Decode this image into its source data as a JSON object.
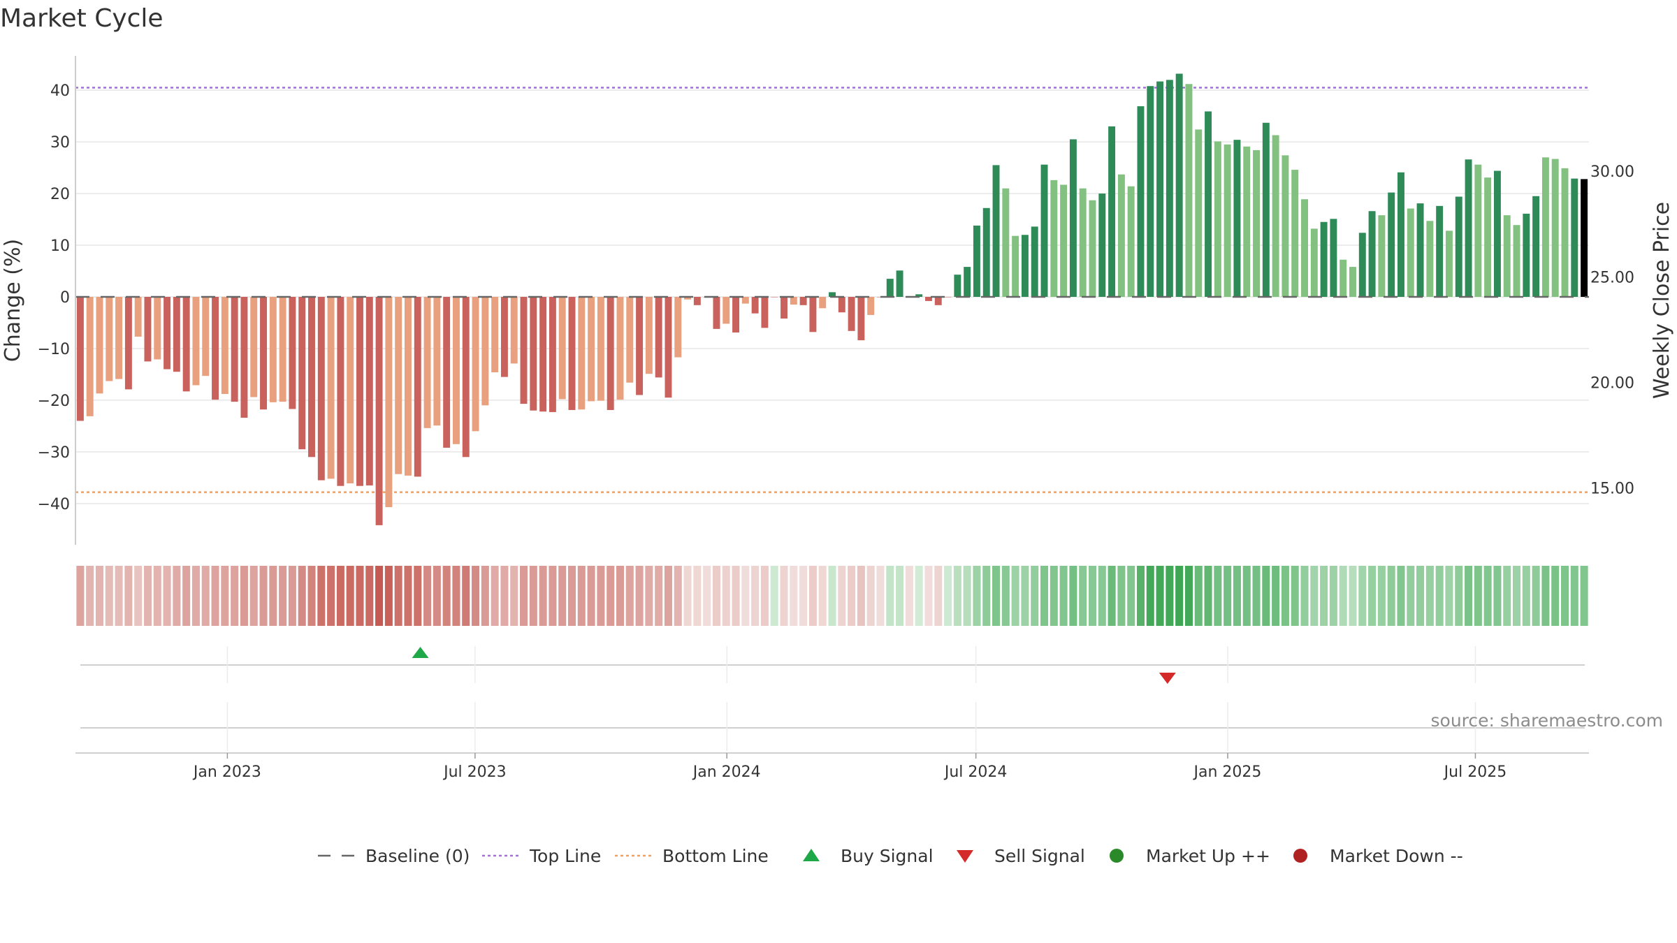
{
  "chart_data": {
    "type": "bar",
    "title": "Market Cycle",
    "ylabel": "Change (%)",
    "y2label": "Weekly Close Price",
    "ylim": [
      -48,
      48
    ],
    "y_ticks": [
      40,
      30,
      20,
      10,
      0,
      -10,
      -20,
      -30,
      -40
    ],
    "y_tick_labels": [
      "40",
      "30",
      "20",
      "10",
      "0",
      "−10",
      "−20",
      "−30",
      "−40"
    ],
    "y2_ticks": [
      30,
      25,
      20,
      15
    ],
    "y2_tick_labels": [
      "30.00",
      "25.00",
      "20.00",
      "15.00"
    ],
    "y2lim": [
      12.3,
      35.8
    ],
    "x_start": "2022-09-12",
    "x_end": "2025-09-22",
    "x_ticks": [
      "2023-01-01",
      "2023-07-01",
      "2024-01-01",
      "2024-07-01",
      "2025-01-01",
      "2025-07-01"
    ],
    "x_tick_labels": [
      "Jan 2023",
      "Jul 2023",
      "Jan 2024",
      "Jul 2024",
      "Jan 2025",
      "Jul 2025"
    ],
    "top_line": 40.5,
    "bottom_line": -37.8,
    "values": [
      -24.0,
      -23.1,
      -18.7,
      -16.3,
      -15.9,
      -17.9,
      -7.7,
      -12.5,
      -12.1,
      -14.0,
      -14.5,
      -18.3,
      -17.1,
      -15.3,
      -19.9,
      -18.8,
      -20.3,
      -23.4,
      -19.4,
      -21.8,
      -20.4,
      -20.3,
      -21.7,
      -29.5,
      -31.0,
      -35.5,
      -35.2,
      -36.6,
      -36.1,
      -36.6,
      -36.5,
      -44.2,
      -40.7,
      -34.3,
      -34.6,
      -34.8,
      -25.4,
      -24.9,
      -29.2,
      -28.5,
      -31.0,
      -26.0,
      -21.0,
      -14.6,
      -15.5,
      -12.9,
      -20.7,
      -22.0,
      -22.2,
      -22.3,
      -19.8,
      -21.9,
      -21.8,
      -20.2,
      -20.1,
      -21.9,
      -19.9,
      -16.6,
      -19.0,
      -14.9,
      -15.6,
      -19.5,
      -11.7,
      -0.5,
      -1.6,
      0.0,
      -6.2,
      -5.2,
      -6.9,
      -1.3,
      -3.2,
      -6.0,
      0.0,
      -4.2,
      -1.5,
      -1.6,
      -6.8,
      -2.2,
      0.9,
      -3.0,
      -6.6,
      -8.4,
      -3.5,
      0.0,
      3.5,
      5.1,
      0.0,
      0.5,
      -0.8,
      -1.6,
      0.0,
      4.3,
      5.8,
      13.8,
      17.2,
      25.5,
      21.0,
      11.8,
      12.0,
      13.6,
      25.6,
      22.6,
      21.7,
      30.5,
      21.0,
      18.7,
      20.0,
      33.0,
      23.7,
      21.4,
      36.9,
      40.8,
      41.7,
      42.0,
      43.2,
      41.2,
      32.4,
      35.9,
      30.1,
      29.5,
      30.4,
      29.1,
      28.4,
      33.7,
      31.3,
      27.4,
      24.6,
      18.9,
      13.2,
      14.5,
      15.1,
      7.2,
      5.8,
      12.4,
      16.6,
      15.8,
      20.2,
      24.1,
      17.1,
      18.1,
      14.7,
      17.6,
      12.8,
      19.4,
      26.6,
      25.6,
      23.1,
      24.4,
      15.8,
      13.9,
      16.1,
      19.5,
      27.0,
      26.7,
      24.9,
      22.9,
      22.8
    ],
    "bar_colors": [
      "#c9625c",
      "#e9a07e",
      "#e9a07e",
      "#e9a07e",
      "#e9a07e",
      "#c9625c",
      "#e9a07e",
      "#c9625c",
      "#e9a07e",
      "#c9625c",
      "#c9625c",
      "#c9625c",
      "#e9a07e",
      "#e9a07e",
      "#c9625c",
      "#e9a07e",
      "#c9625c",
      "#c9625c",
      "#e9a07e",
      "#c9625c",
      "#e9a07e",
      "#e9a07e",
      "#c9625c",
      "#c9625c",
      "#c9625c",
      "#c9625c",
      "#e9a07e",
      "#c9625c",
      "#e9a07e",
      "#c9625c",
      "#c9625c",
      "#c9625c",
      "#e9a07e",
      "#e9a07e",
      "#e9a07e",
      "#c9625c",
      "#e9a07e",
      "#e9a07e",
      "#c9625c",
      "#e9a07e",
      "#c9625c",
      "#e9a07e",
      "#e9a07e",
      "#e9a07e",
      "#c9625c",
      "#e9a07e",
      "#c9625c",
      "#c9625c",
      "#c9625c",
      "#c9625c",
      "#e9a07e",
      "#c9625c",
      "#e9a07e",
      "#e9a07e",
      "#e9a07e",
      "#c9625c",
      "#e9a07e",
      "#e9a07e",
      "#c9625c",
      "#e9a07e",
      "#c9625c",
      "#c9625c",
      "#e9a07e",
      "#e9a07e",
      "#c9625c",
      "#c9625c",
      "#c9625c",
      "#e9a07e",
      "#c9625c",
      "#e9a07e",
      "#c9625c",
      "#c9625c",
      "#c9625c",
      "#c9625c",
      "#e9a07e",
      "#c9625c",
      "#c9625c",
      "#e9a07e",
      "#2e8b57",
      "#c9625c",
      "#c9625c",
      "#c9625c",
      "#e9a07e",
      "#c9625c",
      "#2e8b57",
      "#2e8b57",
      "#c9625c",
      "#2e8b57",
      "#c9625c",
      "#c9625c",
      "#c9625c",
      "#2e8b57",
      "#2e8b57",
      "#2e8b57",
      "#2e8b57",
      "#2e8b57",
      "#82c17f",
      "#82c17f",
      "#2e8b57",
      "#2e8b57",
      "#2e8b57",
      "#82c17f",
      "#82c17f",
      "#2e8b57",
      "#82c17f",
      "#82c17f",
      "#2e8b57",
      "#2e8b57",
      "#82c17f",
      "#82c17f",
      "#2e8b57",
      "#2e8b57",
      "#2e8b57",
      "#2e8b57",
      "#2e8b57",
      "#82c17f",
      "#82c17f",
      "#2e8b57",
      "#82c17f",
      "#82c17f",
      "#2e8b57",
      "#82c17f",
      "#82c17f",
      "#2e8b57",
      "#82c17f",
      "#82c17f",
      "#82c17f",
      "#82c17f",
      "#82c17f",
      "#2e8b57",
      "#2e8b57",
      "#82c17f",
      "#82c17f",
      "#2e8b57",
      "#2e8b57",
      "#82c17f",
      "#2e8b57",
      "#2e8b57",
      "#82c17f",
      "#2e8b57",
      "#82c17f",
      "#2e8b57",
      "#82c17f",
      "#2e8b57",
      "#2e8b57",
      "#82c17f",
      "#82c17f",
      "#2e8b57",
      "#82c17f",
      "#82c17f",
      "#2e8b57",
      "#2e8b57",
      "#82c17f",
      "#82c17f",
      "#82c17f",
      "#2e8b57"
    ],
    "heat_strip": [
      0.4,
      0.3,
      0.3,
      0.25,
      0.25,
      0.3,
      0.2,
      0.3,
      0.3,
      0.3,
      0.35,
      0.4,
      0.35,
      0.35,
      0.4,
      0.4,
      0.4,
      0.45,
      0.4,
      0.45,
      0.45,
      0.45,
      0.45,
      0.55,
      0.6,
      0.7,
      0.7,
      0.75,
      0.75,
      0.75,
      0.75,
      0.85,
      0.8,
      0.7,
      0.7,
      0.7,
      0.55,
      0.55,
      0.6,
      0.6,
      0.65,
      0.55,
      0.45,
      0.35,
      0.35,
      0.3,
      0.45,
      0.45,
      0.45,
      0.45,
      0.45,
      0.45,
      0.45,
      0.45,
      0.45,
      0.45,
      0.45,
      0.4,
      0.4,
      0.35,
      0.35,
      0.4,
      0.3,
      0.08,
      0.08,
      0.05,
      0.15,
      0.12,
      0.15,
      0.05,
      0.1,
      0.15,
      -0.1,
      0.1,
      0.05,
      0.05,
      0.15,
      0.08,
      -0.12,
      0.1,
      0.15,
      0.2,
      0.1,
      0.05,
      -0.15,
      -0.15,
      0.05,
      -0.08,
      0.05,
      0.1,
      -0.1,
      -0.2,
      -0.22,
      -0.35,
      -0.42,
      -0.5,
      -0.45,
      -0.35,
      -0.35,
      -0.4,
      -0.5,
      -0.48,
      -0.48,
      -0.55,
      -0.45,
      -0.45,
      -0.45,
      -0.6,
      -0.5,
      -0.48,
      -0.7,
      -0.8,
      -0.8,
      -0.8,
      -0.82,
      -0.8,
      -0.6,
      -0.65,
      -0.55,
      -0.55,
      -0.55,
      -0.55,
      -0.55,
      -0.6,
      -0.58,
      -0.52,
      -0.5,
      -0.4,
      -0.32,
      -0.35,
      -0.35,
      -0.25,
      -0.22,
      -0.32,
      -0.38,
      -0.38,
      -0.42,
      -0.48,
      -0.4,
      -0.4,
      -0.38,
      -0.4,
      -0.35,
      -0.42,
      -0.52,
      -0.5,
      -0.48,
      -0.48,
      -0.38,
      -0.35,
      -0.38,
      -0.42,
      -0.52,
      -0.52,
      -0.5,
      -0.48,
      -0.48
    ],
    "signals": [
      {
        "type": "buy",
        "date": "2023-05-22"
      },
      {
        "type": "sell",
        "date": "2024-11-18"
      }
    ],
    "legend": [
      {
        "label": "Baseline (0)",
        "symbol": "dash-gray"
      },
      {
        "label": "Top Line",
        "symbol": "dot-purple"
      },
      {
        "label": "Bottom Line",
        "symbol": "dot-orange"
      },
      {
        "label": "Buy Signal",
        "symbol": "triangle-up-green"
      },
      {
        "label": "Sell Signal",
        "symbol": "triangle-down-red"
      },
      {
        "label": "Market Up ++",
        "symbol": "circle-green"
      },
      {
        "label": "Market Down --",
        "symbol": "circle-red"
      }
    ],
    "legend_position": "bottom-center",
    "source": "source: sharemaestro.com",
    "colors": {
      "strong_up": "#2e8b57",
      "weak_up": "#82c17f",
      "strong_down": "#c9625c",
      "weak_down": "#e9a07e",
      "top_line": "#a470d6",
      "bottom_line": "#f0a060",
      "buy": "#1fa848",
      "sell": "#d42a2a",
      "market_up": "#2a8a2a",
      "market_down": "#b02222",
      "baseline": "#666666"
    }
  }
}
